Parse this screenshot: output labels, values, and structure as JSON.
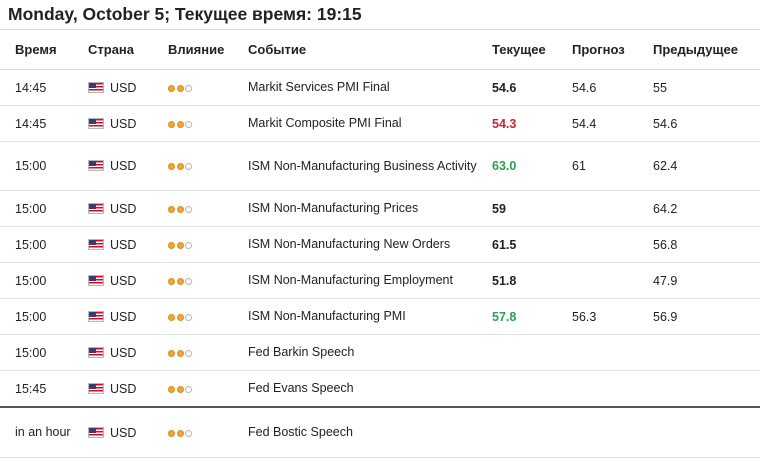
{
  "header": {
    "title": "Monday, October 5; Текущее время: 19:15"
  },
  "columns": {
    "time": "Время",
    "country": "Страна",
    "impact": "Влияние",
    "event": "Событие",
    "actual": "Текущее",
    "forecast": "Прогноз",
    "previous": "Предыдущее"
  },
  "colors": {
    "red": "#d0202f",
    "green": "#2aa050",
    "dot_on": "#f0a830",
    "dot_off": "#ffffff"
  },
  "rows": [
    {
      "time": "14:45",
      "flag_icon": "us-flag-icon",
      "currency": "USD",
      "impact": 2,
      "event": "Markit Services PMI Final",
      "actual": "54.6",
      "actual_color": "black",
      "forecast": "54.6",
      "previous": "55"
    },
    {
      "time": "14:45",
      "flag_icon": "us-flag-icon",
      "currency": "USD",
      "impact": 2,
      "event": "Markit Composite PMI Final",
      "actual": "54.3",
      "actual_color": "red",
      "forecast": "54.4",
      "previous": "54.6"
    },
    {
      "time": "15:00",
      "flag_icon": "us-flag-icon",
      "currency": "USD",
      "impact": 2,
      "event": "ISM Non-Manufacturing Business Activity",
      "actual": "63.0",
      "actual_color": "green",
      "forecast": "61",
      "previous": "62.4"
    },
    {
      "time": "15:00",
      "flag_icon": "us-flag-icon",
      "currency": "USD",
      "impact": 2,
      "event": "ISM Non-Manufacturing Prices",
      "actual": "59",
      "actual_color": "black",
      "forecast": "",
      "previous": "64.2"
    },
    {
      "time": "15:00",
      "flag_icon": "us-flag-icon",
      "currency": "USD",
      "impact": 2,
      "event": "ISM Non-Manufacturing New Orders",
      "actual": "61.5",
      "actual_color": "black",
      "forecast": "",
      "previous": "56.8"
    },
    {
      "time": "15:00",
      "flag_icon": "us-flag-icon",
      "currency": "USD",
      "impact": 2,
      "event": "ISM Non-Manufacturing Employment",
      "actual": "51.8",
      "actual_color": "black",
      "forecast": "",
      "previous": "47.9"
    },
    {
      "time": "15:00",
      "flag_icon": "us-flag-icon",
      "currency": "USD",
      "impact": 2,
      "event": "ISM Non-Manufacturing PMI",
      "actual": "57.8",
      "actual_color": "green",
      "forecast": "56.3",
      "previous": "56.9"
    },
    {
      "time": "15:00",
      "flag_icon": "us-flag-icon",
      "currency": "USD",
      "impact": 2,
      "event": "Fed Barkin Speech",
      "actual": "",
      "actual_color": "black",
      "forecast": "",
      "previous": ""
    },
    {
      "time": "15:45",
      "flag_icon": "us-flag-icon",
      "currency": "USD",
      "impact": 2,
      "event": "Fed Evans Speech",
      "actual": "",
      "actual_color": "black",
      "forecast": "",
      "previous": ""
    },
    {
      "time": "in an hour",
      "flag_icon": "us-flag-icon",
      "currency": "USD",
      "impact": 2,
      "event": "Fed Bostic Speech",
      "actual": "",
      "actual_color": "black",
      "forecast": "",
      "previous": ""
    }
  ]
}
